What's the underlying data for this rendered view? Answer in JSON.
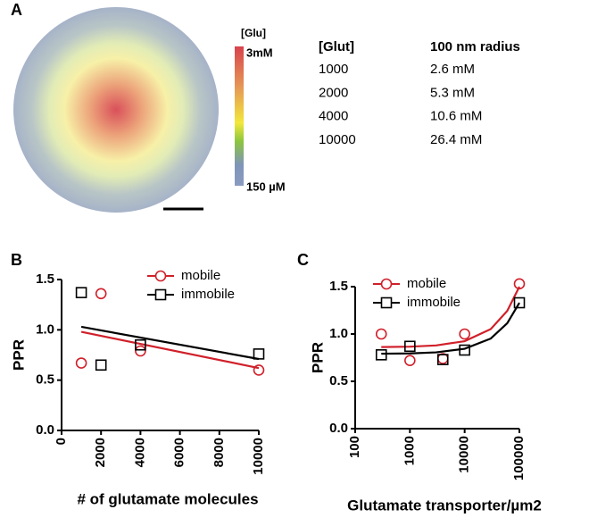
{
  "panel_a": {
    "label": "A",
    "colorbar": {
      "title": "[Glu]",
      "max_label": "3mM",
      "min_label": "150 µM"
    },
    "table": {
      "header": [
        "[Glut]",
        "100 nm radius"
      ],
      "rows": [
        [
          "1000",
          "2.6 mM"
        ],
        [
          "2000",
          "5.3 mM"
        ],
        [
          "4000",
          "10.6 mM"
        ],
        [
          "10000",
          "26.4 mM"
        ]
      ]
    }
  },
  "chart_data": [
    {
      "type": "scatter",
      "label": "B",
      "ylabel": "PPR",
      "xlabel": "# of glutamate molecules",
      "xlim": [
        0,
        10000
      ],
      "xticks": [
        0,
        2000,
        4000,
        6000,
        8000,
        10000
      ],
      "ylim": [
        0,
        1.5
      ],
      "yticks": [
        {
          "value": 0,
          "label": "0.0"
        },
        0.5,
        {
          "value": 1,
          "label": "1.0"
        },
        1.5
      ],
      "series": [
        {
          "name": "mobile",
          "color": "#d0202a",
          "marker": "circle",
          "x": [
            1000,
            2000,
            4000,
            10000
          ],
          "values": [
            0.67,
            1.36,
            0.79,
            0.6
          ],
          "fit_x": [
            1000,
            10000
          ],
          "fit_values": [
            0.98,
            0.62
          ]
        },
        {
          "name": "immobile",
          "color": "#000000",
          "marker": "square",
          "x": [
            1000,
            2000,
            4000,
            10000
          ],
          "values": [
            1.37,
            0.65,
            0.85,
            0.76
          ],
          "fit_x": [
            1000,
            10000
          ],
          "fit_values": [
            1.03,
            0.71
          ]
        }
      ]
    },
    {
      "type": "scatter",
      "label": "C",
      "ylabel": "PPR",
      "xlabel": "Glutamate transporter/µm2",
      "xlog": true,
      "xlim": [
        100,
        100000
      ],
      "xticks": [
        100,
        1000,
        10000,
        100000
      ],
      "ylim": [
        0,
        1.5
      ],
      "yticks": [
        {
          "value": 0,
          "label": "0.0"
        },
        0.5,
        {
          "value": 1,
          "label": "1.0"
        },
        1.5
      ],
      "series": [
        {
          "name": "mobile",
          "color": "#d0202a",
          "marker": "circle",
          "x": [
            300,
            1000,
            4000,
            10000,
            100000
          ],
          "values": [
            1.0,
            0.72,
            0.74,
            1.0,
            1.53
          ],
          "fit_x": [
            300,
            1000,
            3000,
            10000,
            30000,
            60000,
            100000
          ],
          "fit_values": [
            0.862,
            0.866,
            0.879,
            0.924,
            1.052,
            1.244,
            1.5
          ]
        },
        {
          "name": "immobile",
          "color": "#000000",
          "marker": "square",
          "x": [
            300,
            1000,
            4000,
            10000,
            100000
          ],
          "values": [
            0.78,
            0.87,
            0.73,
            0.83,
            1.33
          ],
          "fit_x": [
            300,
            1000,
            3000,
            10000,
            30000,
            60000,
            100000
          ],
          "fit_values": [
            0.792,
            0.795,
            0.806,
            0.844,
            0.952,
            1.114,
            1.33
          ]
        }
      ]
    }
  ]
}
